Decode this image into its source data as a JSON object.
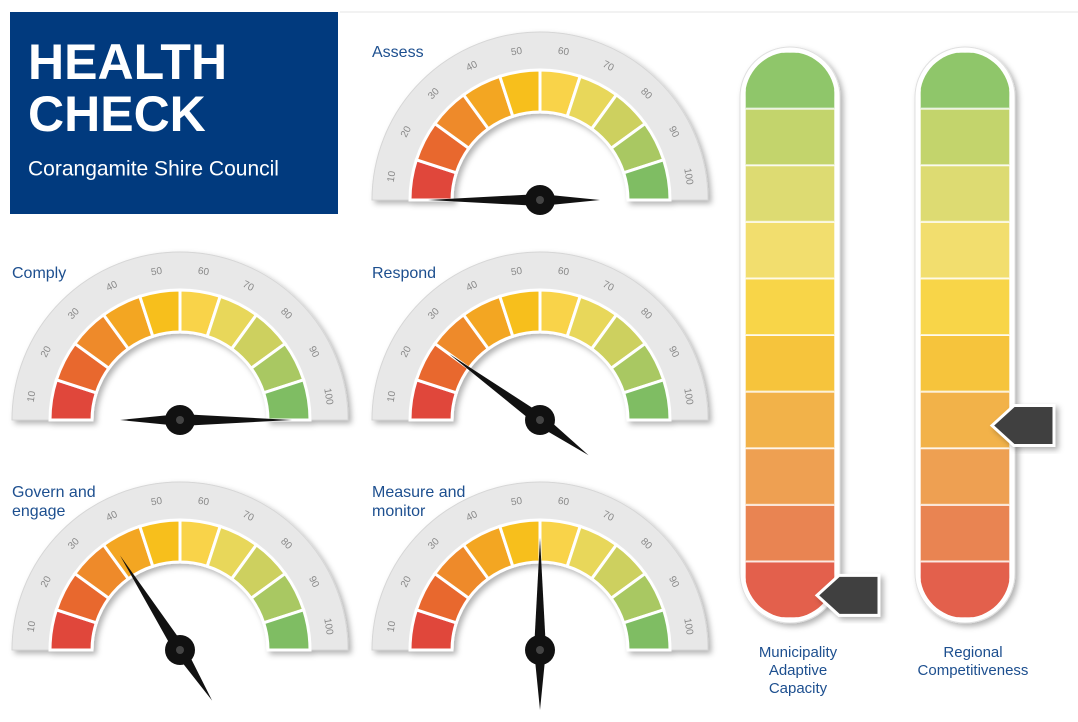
{
  "header": {
    "title_lines": [
      "HEALTH",
      "CHECK"
    ],
    "subtitle": "Corangamite Shire Council"
  },
  "gauges": {
    "range": [
      0,
      100
    ],
    "ticks": [
      10,
      20,
      30,
      40,
      50,
      60,
      70,
      80,
      90,
      100
    ],
    "colors": [
      "#e0463a",
      "#e8672f",
      "#ee8a2a",
      "#f3a624",
      "#f7bf1f",
      "#f9d34a",
      "#e8d75a",
      "#cdd05f",
      "#a9c862",
      "#7fbd64"
    ],
    "items": [
      {
        "label_lines": [
          "Assess"
        ],
        "value": 0
      },
      {
        "label_lines": [
          "Comply"
        ],
        "value": 100
      },
      {
        "label_lines": [
          "Respond"
        ],
        "value": 20
      },
      {
        "label_lines": [
          "Govern and",
          "engage"
        ],
        "value": 32
      },
      {
        "label_lines": [
          "Measure and",
          "monitor"
        ],
        "value": 50
      }
    ]
  },
  "bars": {
    "range": [
      0,
      100
    ],
    "colors": [
      "#e3604c",
      "#e98452",
      "#eea052",
      "#f2b249",
      "#f6c43c",
      "#f8d548",
      "#f2de6e",
      "#dddb72",
      "#c3d46c",
      "#8fc66a"
    ],
    "items": [
      {
        "label_lines": [
          "Municipality",
          "Adaptive",
          "Capacity"
        ],
        "value": 4
      },
      {
        "label_lines": [
          "Regional",
          "Competitiveness"
        ],
        "value": 34
      }
    ]
  }
}
